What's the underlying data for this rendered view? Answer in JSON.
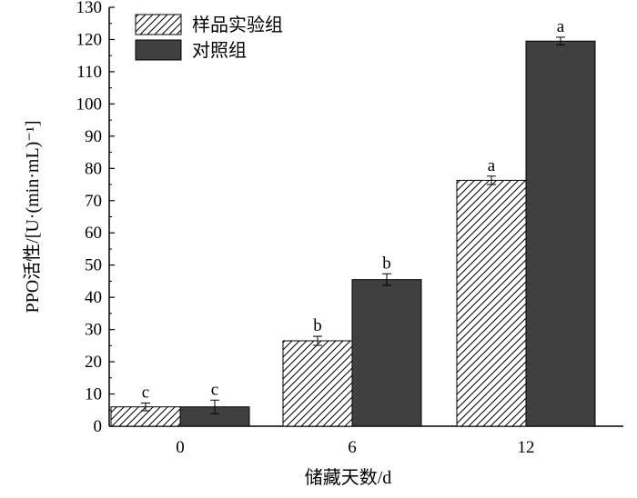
{
  "chart_data": {
    "type": "bar",
    "categories": [
      "0",
      "6",
      "12"
    ],
    "series": [
      {
        "name": "样品实验组",
        "pattern": "hatched",
        "color": "#ffffff",
        "values": [
          6,
          26.5,
          76.3
        ],
        "errors": [
          1.2,
          1.4,
          1.3
        ],
        "labels": [
          "c",
          "b",
          "a"
        ]
      },
      {
        "name": "对照组",
        "pattern": "solid",
        "color": "#404040",
        "values": [
          6,
          45.5,
          119.5
        ],
        "errors": [
          2.1,
          1.8,
          1.2
        ],
        "labels": [
          "c",
          "b",
          "a"
        ]
      }
    ],
    "xlabel": "储藏天数/d",
    "ylabel": "PPO活性/[U·(min·mL)⁻¹]",
    "ylim": [
      0,
      130
    ],
    "yticks": [
      "0",
      "10",
      "20",
      "30",
      "40",
      "50",
      "60",
      "70",
      "80",
      "90",
      "100",
      "110",
      "120",
      "130"
    ],
    "grid": false,
    "legend_position": "top-left"
  }
}
